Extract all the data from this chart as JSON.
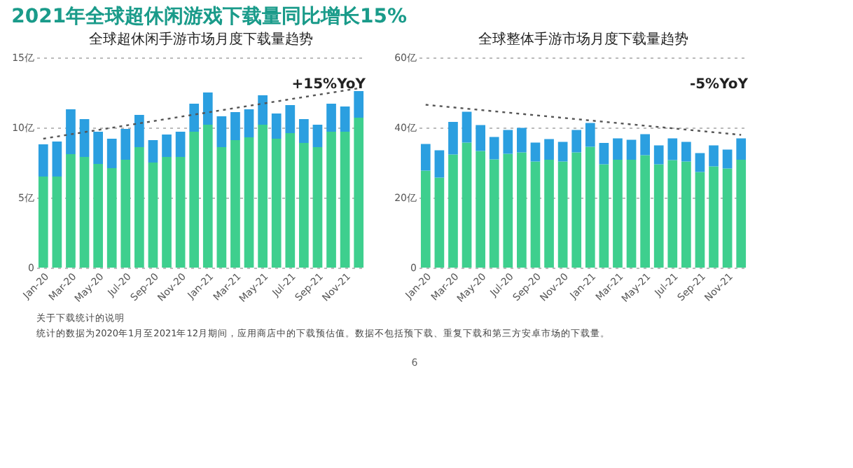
{
  "chart_data": [
    {
      "type": "bar",
      "stacked": true,
      "title": "全球超休闲手游市场月度下载量趋势",
      "categories": [
        "Jan-20",
        null,
        "Mar-20",
        null,
        "May-20",
        null,
        "Jul-20",
        null,
        "Sep-20",
        null,
        "Nov-20",
        null,
        "Jan-21",
        null,
        "Mar-21",
        null,
        "May-21",
        null,
        "Jul-21",
        null,
        "Sep-21",
        null,
        "Nov-21",
        null
      ],
      "series": [
        {
          "color": "#3ecf8e",
          "values": [
            6.5,
            6.5,
            8.1,
            7.9,
            7.4,
            7.1,
            7.7,
            8.6,
            7.5,
            7.9,
            7.9,
            9.7,
            10.2,
            8.6,
            9.1,
            9.3,
            10.2,
            9.2,
            9.6,
            8.9,
            8.6,
            9.7,
            9.7,
            10.7
          ]
        },
        {
          "color": "#2b9fe0",
          "values": [
            2.3,
            2.5,
            3.2,
            2.7,
            2.3,
            2.1,
            2.2,
            2.3,
            1.6,
            1.6,
            1.8,
            2.0,
            2.3,
            2.2,
            2.0,
            2.0,
            2.1,
            1.8,
            2.0,
            1.7,
            1.6,
            2.0,
            1.8,
            1.9
          ]
        },
        {
          "type": "line",
          "color": "#555555",
          "line_style": "dotted",
          "values": [
            9.2,
            null,
            null,
            null,
            null,
            null,
            null,
            null,
            null,
            null,
            null,
            null,
            null,
            null,
            null,
            null,
            null,
            null,
            null,
            null,
            null,
            null,
            null,
            12.8
          ]
        }
      ],
      "ylim": [
        0,
        15
      ],
      "yticks": [
        0,
        {
          "value": 5,
          "label": "5亿"
        },
        {
          "value": 10,
          "label": "10亿"
        },
        {
          "value": 15,
          "label": "15亿"
        }
      ],
      "grid": "y",
      "annotations": [
        "2021年全球超休闲游戏下载量同比增长15%",
        "+15%YoY",
        "关于下载统计的说明",
        "统计的数据为2020年1月至2021年12月期间，应用商店中的下载预估值。数据不包括预下载、重复下载和第三方安卓市场的下载量。",
        "6"
      ]
    },
    {
      "type": "bar",
      "stacked": true,
      "title": "全球整体手游市场月度下载量趋势",
      "categories": [
        "Jan-20",
        null,
        "Mar-20",
        null,
        "May-20",
        null,
        "Jul-20",
        null,
        "Sep-20",
        null,
        "Nov-20",
        null,
        "Jan-21",
        null,
        "Mar-21",
        null,
        "May-21",
        null,
        "Jul-21",
        null,
        "Sep-21",
        null,
        "Nov-21",
        null
      ],
      "series": [
        {
          "color": "#3ecf8e",
          "values": [
            27.7,
            25.7,
            32.3,
            35.7,
            33.3,
            30.9,
            32.5,
            32.9,
            30.3,
            30.8,
            30.3,
            32.9,
            34.5,
            29.5,
            30.8,
            30.8,
            32.1,
            29.5,
            30.7,
            30.3,
            27.3,
            28.9,
            28.3,
            30.8
          ]
        },
        {
          "color": "#2b9fe0",
          "values": [
            7.6,
            7.8,
            9.3,
            8.8,
            7.4,
            6.4,
            6.8,
            7.0,
            5.4,
            5.9,
            5.6,
            6.4,
            6.8,
            6.1,
            6.1,
            5.7,
            6.0,
            5.4,
            6.2,
            5.6,
            5.4,
            6.0,
            5.4,
            6.1
          ]
        },
        {
          "type": "line",
          "color": "#555555",
          "line_style": "dotted",
          "values": [
            46.5,
            null,
            null,
            null,
            null,
            null,
            null,
            null,
            null,
            null,
            null,
            null,
            null,
            null,
            null,
            null,
            null,
            null,
            null,
            null,
            null,
            null,
            null,
            37.9
          ]
        }
      ],
      "ylim": [
        0,
        60
      ],
      "yticks": [
        0,
        {
          "value": 20,
          "label": "20亿"
        },
        {
          "value": 40,
          "label": "40亿"
        },
        {
          "value": 60,
          "label": "60亿"
        }
      ],
      "grid": "y",
      "annotations": [
        "-5%YoY"
      ]
    }
  ]
}
